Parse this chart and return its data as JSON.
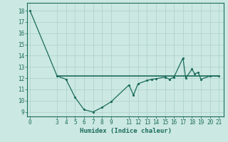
{
  "x": [
    0,
    3,
    4,
    5,
    6,
    7,
    8,
    9,
    11,
    11.5,
    12,
    13,
    13.5,
    14,
    15,
    15.5,
    16,
    17,
    17.3,
    18,
    18.3,
    18.7,
    19,
    20,
    21
  ],
  "y": [
    18,
    12.2,
    11.9,
    10.3,
    9.2,
    9.0,
    9.4,
    9.9,
    11.4,
    10.5,
    11.5,
    11.8,
    11.9,
    11.95,
    12.1,
    11.9,
    12.1,
    13.8,
    12.0,
    12.8,
    12.4,
    12.5,
    11.9,
    12.2,
    12.2
  ],
  "hline_y": 12.2,
  "hline_x_start": 3,
  "hline_x_end": 21,
  "line_color": "#1a6b5a",
  "bg_color": "#cce8e3",
  "grid_color": "#b0d4ce",
  "xlabel": "Humidex (Indice chaleur)",
  "xticks": [
    0,
    3,
    4,
    5,
    6,
    7,
    8,
    9,
    11,
    12,
    13,
    14,
    15,
    16,
    17,
    18,
    19,
    20,
    21
  ],
  "yticks": [
    9,
    10,
    11,
    12,
    13,
    14,
    15,
    16,
    17,
    18
  ],
  "ylim": [
    8.6,
    18.7
  ],
  "xlim": [
    -0.3,
    21.5
  ],
  "marker_size": 2.5,
  "line_width": 0.9
}
